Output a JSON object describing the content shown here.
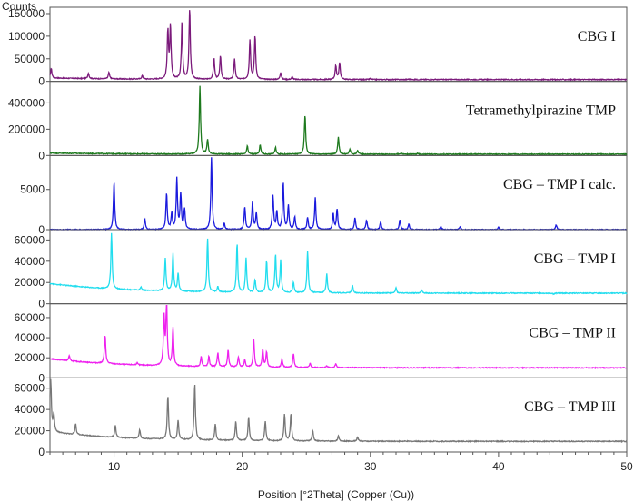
{
  "chart_data": {
    "type": "line",
    "xlabel": "Position [°2Theta] (Copper (Cu))",
    "ylabel": "Counts",
    "xlim": [
      5,
      50
    ],
    "x_ticks": [
      "10",
      "20",
      "30",
      "40",
      "50"
    ],
    "grid": false,
    "series": [
      {
        "name": "CBG I",
        "color": "#7B1A7B",
        "ylim": [
          0,
          160000
        ],
        "y_ticks": [
          "0",
          "50000",
          "100000",
          "150000"
        ],
        "baseline": 4000,
        "peaks": [
          [
            5.1,
            25000
          ],
          [
            8.0,
            16000
          ],
          [
            9.6,
            18000
          ],
          [
            12.2,
            12000
          ],
          [
            14.2,
            110000
          ],
          [
            14.4,
            120000
          ],
          [
            15.3,
            130000
          ],
          [
            15.9,
            160000
          ],
          [
            17.8,
            50000
          ],
          [
            18.3,
            55000
          ],
          [
            19.4,
            50000
          ],
          [
            20.6,
            90000
          ],
          [
            21.0,
            100000
          ],
          [
            23.0,
            20000
          ],
          [
            23.9,
            10000
          ],
          [
            27.3,
            35000
          ],
          [
            27.6,
            42000
          ],
          [
            30.0,
            6000
          ],
          [
            33.0,
            5000
          ]
        ]
      },
      {
        "name": "Tetramethylpirazine TMP",
        "color": "#1E7A1E",
        "ylim": [
          0,
          550000
        ],
        "y_ticks": [
          "0",
          "200000",
          "400000"
        ],
        "baseline": 10000,
        "peaks": [
          [
            16.7,
            530000
          ],
          [
            17.3,
            120000
          ],
          [
            20.4,
            70000
          ],
          [
            21.4,
            80000
          ],
          [
            22.6,
            60000
          ],
          [
            24.9,
            310000
          ],
          [
            27.5,
            140000
          ],
          [
            28.4,
            50000
          ],
          [
            29.0,
            40000
          ],
          [
            32.4,
            20000
          ],
          [
            33.7,
            15000
          ]
        ]
      },
      {
        "name": "CBG – TMP I calc.",
        "color": "#1A1ADD",
        "ylim": [
          0,
          9000
        ],
        "y_ticks": [
          "0",
          "5000"
        ],
        "baseline": 0,
        "peaks": [
          [
            10.0,
            6000
          ],
          [
            12.4,
            1300
          ],
          [
            14.1,
            4500
          ],
          [
            14.5,
            2000
          ],
          [
            14.9,
            6300
          ],
          [
            15.2,
            4400
          ],
          [
            15.5,
            2500
          ],
          [
            17.6,
            9200
          ],
          [
            18.6,
            800
          ],
          [
            20.2,
            2800
          ],
          [
            20.8,
            3500
          ],
          [
            21.1,
            2000
          ],
          [
            22.4,
            4200
          ],
          [
            22.7,
            2200
          ],
          [
            23.2,
            5800
          ],
          [
            23.6,
            3000
          ],
          [
            24.1,
            1600
          ],
          [
            25.1,
            1500
          ],
          [
            25.7,
            4000
          ],
          [
            27.1,
            2000
          ],
          [
            27.4,
            2600
          ],
          [
            28.8,
            1500
          ],
          [
            29.7,
            1200
          ],
          [
            30.8,
            1000
          ],
          [
            32.3,
            1200
          ],
          [
            33.0,
            700
          ],
          [
            35.5,
            400
          ],
          [
            37.0,
            400
          ],
          [
            40.0,
            300
          ],
          [
            44.5,
            600
          ]
        ]
      },
      {
        "name": "CBG – TMP I",
        "color": "#22DDEE",
        "ylim": [
          0,
          68000
        ],
        "y_ticks": [
          "0",
          "20000",
          "40000",
          "60000"
        ],
        "baseline": 10000,
        "peaks": [
          [
            9.8,
            62000
          ],
          [
            12.1,
            13000
          ],
          [
            14.0,
            41000
          ],
          [
            14.6,
            45000
          ],
          [
            15.0,
            27000
          ],
          [
            17.3,
            60000
          ],
          [
            18.1,
            15000
          ],
          [
            19.6,
            56000
          ],
          [
            20.3,
            42000
          ],
          [
            21.0,
            22000
          ],
          [
            21.9,
            40000
          ],
          [
            22.6,
            46000
          ],
          [
            23.0,
            40000
          ],
          [
            24.0,
            20000
          ],
          [
            25.1,
            49000
          ],
          [
            26.6,
            28000
          ],
          [
            28.6,
            17000
          ],
          [
            32.0,
            15000
          ],
          [
            34.0,
            13000
          ],
          [
            44.3,
            9000
          ]
        ]
      },
      {
        "name": "CBG – TMP II",
        "color": "#EE22EE",
        "ylim": [
          0,
          72000
        ],
        "y_ticks": [
          "0",
          "20000",
          "40000",
          "60000"
        ],
        "baseline": 10000,
        "peaks": [
          [
            6.5,
            15000
          ],
          [
            9.3,
            38000
          ],
          [
            11.8,
            12000
          ],
          [
            13.9,
            58000
          ],
          [
            14.1,
            72000
          ],
          [
            14.6,
            48000
          ],
          [
            16.8,
            20000
          ],
          [
            17.4,
            20000
          ],
          [
            18.1,
            24000
          ],
          [
            18.9,
            27000
          ],
          [
            19.7,
            20000
          ],
          [
            20.2,
            17000
          ],
          [
            20.9,
            37000
          ],
          [
            21.6,
            28000
          ],
          [
            21.9,
            25000
          ],
          [
            23.1,
            18000
          ],
          [
            24.0,
            24000
          ],
          [
            25.3,
            14000
          ],
          [
            26.6,
            12000
          ],
          [
            27.3,
            14000
          ],
          [
            30.0,
            10000
          ]
        ]
      },
      {
        "name": "CBG – TMP III",
        "color": "#777777",
        "ylim": [
          0,
          68000
        ],
        "y_ticks": [
          "0",
          "20000",
          "40000",
          "60000"
        ],
        "baseline": 10000,
        "peaks": [
          [
            5.05,
            66000
          ],
          [
            5.3,
            26000
          ],
          [
            7.0,
            20000
          ],
          [
            10.1,
            21000
          ],
          [
            12.0,
            18000
          ],
          [
            14.2,
            51000
          ],
          [
            15.0,
            28000
          ],
          [
            16.3,
            63000
          ],
          [
            17.9,
            25000
          ],
          [
            19.5,
            28000
          ],
          [
            20.5,
            32000
          ],
          [
            21.8,
            28000
          ],
          [
            23.3,
            35000
          ],
          [
            23.8,
            36000
          ],
          [
            25.5,
            20000
          ],
          [
            27.5,
            15000
          ],
          [
            29.0,
            14000
          ]
        ]
      }
    ]
  }
}
